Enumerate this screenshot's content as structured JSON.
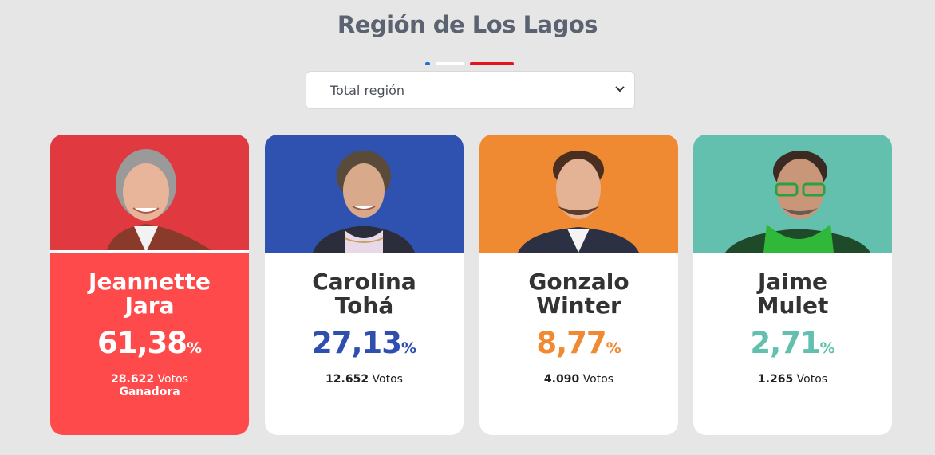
{
  "header": {
    "title": "Región de Los Lagos"
  },
  "flag_colors": {
    "blue": "#1b6fe0",
    "white": "#ffffff",
    "red": "#e3141f"
  },
  "region_select": {
    "value": "Total región",
    "icon": "chevron-down-icon"
  },
  "candidates": [
    {
      "first_name": "Jeannette",
      "last_name": "Jara",
      "percent": "61,38",
      "percent_symbol": "%",
      "votes_number": "28.622",
      "votes_label": "Votos",
      "status": "Ganadora",
      "color": "#ff4a4c",
      "photo_bg": "#e0393f"
    },
    {
      "first_name": "Carolina",
      "last_name": "Tohá",
      "percent": "27,13",
      "percent_symbol": "%",
      "votes_number": "12.652",
      "votes_label": "Votos",
      "color": "#2f4fb0",
      "photo_bg": "#2f52b0"
    },
    {
      "first_name": "Gonzalo",
      "last_name": "Winter",
      "percent": "8,77",
      "percent_symbol": "%",
      "votes_number": "4.090",
      "votes_label": "Votos",
      "color": "#ef8a33",
      "photo_bg": "#ef8a33"
    },
    {
      "first_name": "Jaime",
      "last_name": "Mulet",
      "percent": "2,71",
      "percent_symbol": "%",
      "votes_number": "1.265",
      "votes_label": "Votos",
      "color": "#63c0ae",
      "photo_bg": "#63c0ae"
    }
  ]
}
